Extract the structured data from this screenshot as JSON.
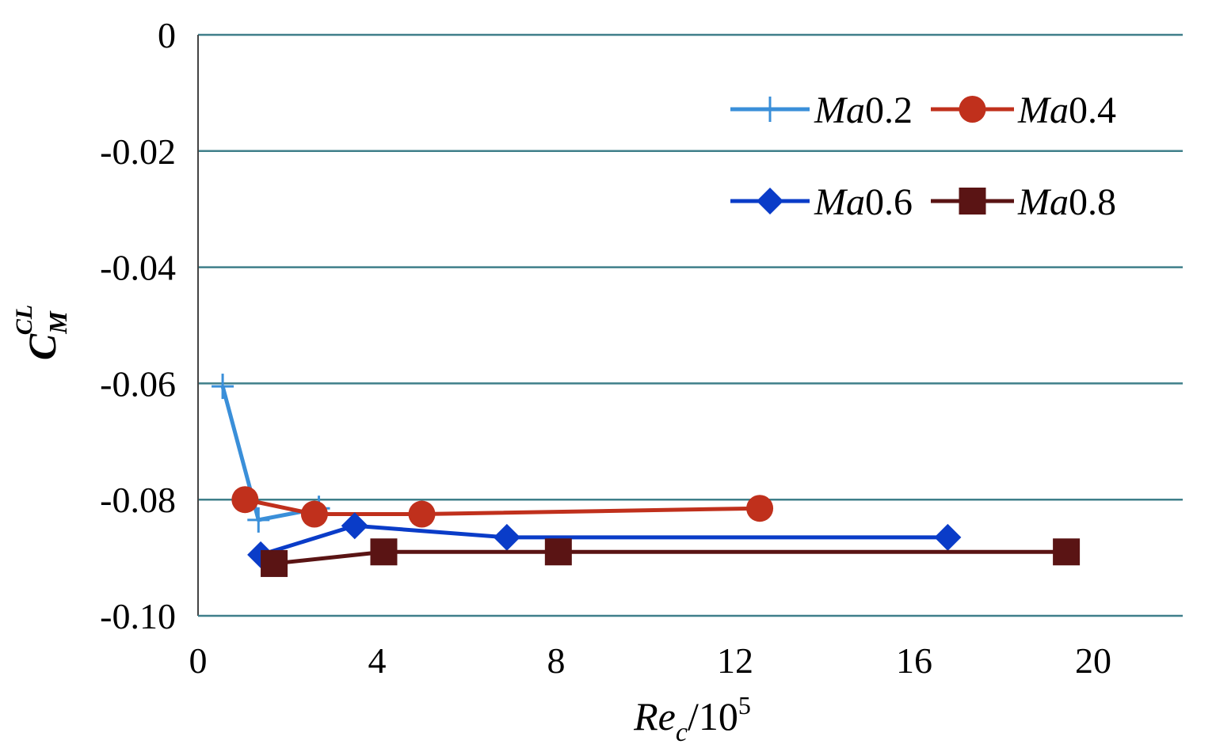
{
  "chart_data": {
    "type": "line",
    "xlabel": {
      "main": "Re",
      "sub": "c",
      "rest": "/10",
      "sup": "5"
    },
    "ylabel": {
      "main": "C",
      "sub": "M",
      "sup": "CL"
    },
    "xlim": [
      0,
      22
    ],
    "ylim": [
      -0.1,
      0
    ],
    "x_ticks": [
      0,
      4,
      8,
      12,
      16,
      20
    ],
    "x_tick_labels": [
      "0",
      "4",
      "8",
      "12",
      "16",
      "20"
    ],
    "y_ticks": [
      0,
      -0.02,
      -0.04,
      -0.06,
      -0.08,
      -0.1
    ],
    "y_tick_labels": [
      "0",
      "-0.02",
      "-0.04",
      "-0.06",
      "-0.08",
      "-0.10"
    ],
    "grid": {
      "horizontal": true,
      "vertical": false
    },
    "legend_position": "top-right",
    "series": [
      {
        "name": "Ma0.2",
        "name_italic": "Ma",
        "name_rest": "0.2",
        "color": "#3a8fd9",
        "marker": "plus",
        "x": [
          0.55,
          1.35,
          2.7
        ],
        "y": [
          -0.0605,
          -0.0835,
          -0.0815
        ]
      },
      {
        "name": "Ma0.4",
        "name_italic": "Ma",
        "name_rest": "0.4",
        "color": "#c0301c",
        "marker": "circle",
        "x": [
          1.05,
          2.6,
          5.0,
          12.55
        ],
        "y": [
          -0.08,
          -0.0825,
          -0.0825,
          -0.0815
        ]
      },
      {
        "name": "Ma0.6",
        "name_italic": "Ma",
        "name_rest": "0.6",
        "color": "#0a3cc8",
        "marker": "diamond",
        "x": [
          1.4,
          3.5,
          6.9,
          16.75
        ],
        "y": [
          -0.0895,
          -0.0845,
          -0.0865,
          -0.0865
        ]
      },
      {
        "name": "Ma0.8",
        "name_italic": "Ma",
        "name_rest": "0.8",
        "color": "#5a1414",
        "marker": "square",
        "x": [
          1.7,
          4.15,
          8.05,
          19.4
        ],
        "y": [
          -0.091,
          -0.089,
          -0.089,
          -0.089
        ]
      }
    ]
  }
}
